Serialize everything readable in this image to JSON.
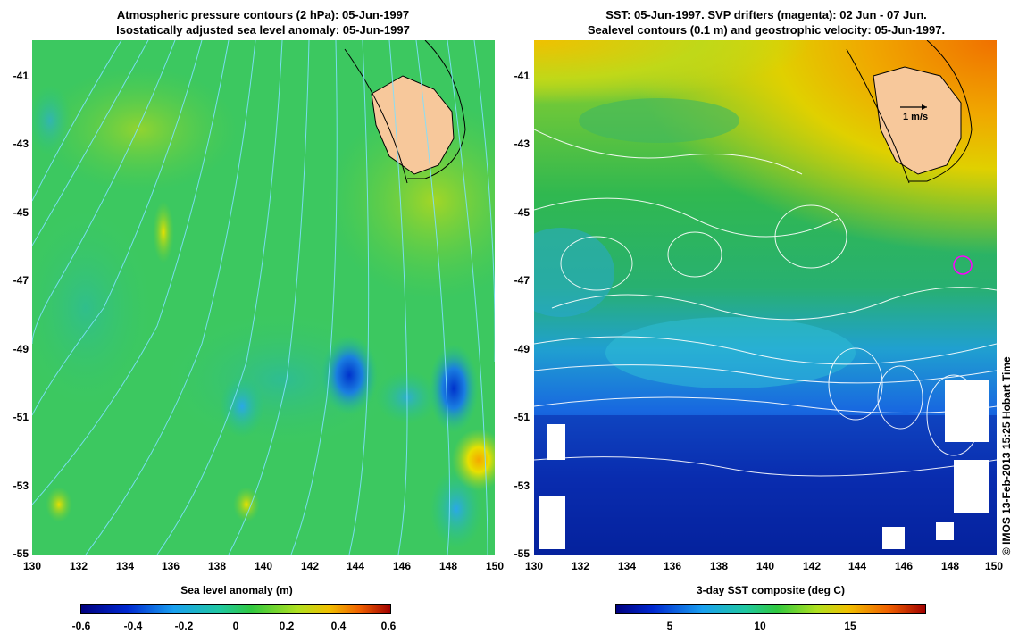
{
  "left_panel": {
    "title_line1": "Atmospheric pressure contours (2 hPa): 05-Jun-1997",
    "title_line2": "Isostatically adjusted sea level anomaly: 05-Jun-1997",
    "x_ticks": [
      "130",
      "132",
      "134",
      "136",
      "138",
      "140",
      "142",
      "144",
      "146",
      "148",
      "150"
    ],
    "y_ticks": [
      "-41",
      "-43",
      "-45",
      "-47",
      "-49",
      "-51",
      "-53",
      "-55"
    ],
    "colorbar": {
      "title": "Sea level anomaly (m)",
      "ticks": [
        "-0.6",
        "-0.4",
        "-0.2",
        "0",
        "0.2",
        "0.4",
        "0.6"
      ],
      "range": [
        -0.6,
        0.6
      ]
    }
  },
  "right_panel": {
    "title_line1": "SST: 05-Jun-1997. SVP drifters (magenta): 02 Jun - 07 Jun.",
    "title_line2": "Sealevel contours (0.1 m) and geostrophic velocity: 05-Jun-1997.",
    "x_ticks": [
      "130",
      "132",
      "134",
      "136",
      "138",
      "140",
      "142",
      "144",
      "146",
      "148",
      "150"
    ],
    "y_ticks": [
      "-41",
      "-43",
      "-45",
      "-47",
      "-49",
      "-51",
      "-53",
      "-55"
    ],
    "velocity_scale_label": "1 m/s",
    "colorbar": {
      "title": "3-day SST composite (deg C)",
      "ticks": [
        "5",
        "10",
        "15"
      ],
      "range": [
        2,
        19
      ]
    }
  },
  "credit": "© IMOS 13-Feb-2013 15:25 Hobart Time",
  "map_extent": {
    "lon": [
      130,
      150
    ],
    "lat": [
      -55,
      -40
    ]
  },
  "colors": {
    "land": "#f7c89b",
    "contour_left": "#7fe0ff",
    "contour_right": "#ffffff",
    "drifter": "#ff00ff"
  }
}
